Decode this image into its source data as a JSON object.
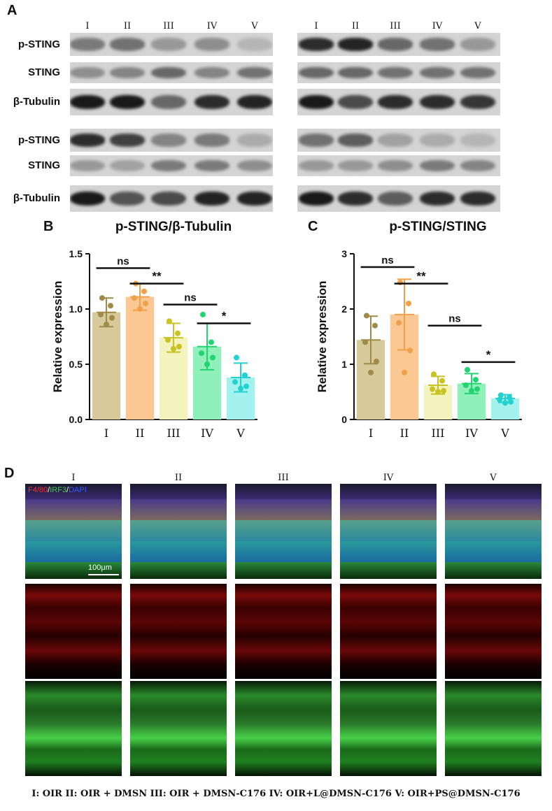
{
  "panels": {
    "a": "A",
    "b": "B",
    "c": "C",
    "d": "D"
  },
  "lanes": [
    "I",
    "II",
    "III",
    "IV",
    "V"
  ],
  "blot_rows": [
    "p-STING",
    "STING",
    "β-Tubulin",
    "p-STING",
    "STING",
    "β-Tubulin"
  ],
  "chart_data": [
    {
      "type": "bar",
      "title": "p-STING/β-Tubulin",
      "ylabel": "Relative expression",
      "xlabel": "",
      "categories": [
        "I",
        "II",
        "III",
        "IV",
        "V"
      ],
      "values": [
        0.97,
        1.11,
        0.74,
        0.66,
        0.38
      ],
      "errors": [
        0.13,
        0.12,
        0.13,
        0.21,
        0.13
      ],
      "points": [
        [
          1.1,
          1.03,
          0.95,
          0.92,
          0.86
        ],
        [
          1.23,
          1.16,
          1.1,
          1.05,
          1.0
        ],
        [
          0.89,
          0.78,
          0.72,
          0.66,
          0.64
        ],
        [
          0.95,
          0.7,
          0.6,
          0.56,
          0.5
        ],
        [
          0.56,
          0.4,
          0.34,
          0.3,
          0.28
        ]
      ],
      "ylim": [
        0,
        1.5
      ],
      "yticks": [
        "0.0",
        "0.5",
        "1.0",
        "1.5"
      ],
      "colors": [
        "#d6c99a",
        "#fbc893",
        "#f2f3bd",
        "#8ff0ba",
        "#a3f2ee"
      ],
      "point_colors": [
        "#a08a4a",
        "#f0a048",
        "#c8c222",
        "#22d372",
        "#22d1d0"
      ],
      "significance": [
        {
          "from": 0,
          "to": 1,
          "label": "ns",
          "y": 1.37
        },
        {
          "from": 1,
          "to": 2,
          "label": "**",
          "y": 1.23
        },
        {
          "from": 2,
          "to": 3,
          "label": "ns",
          "y": 1.04
        },
        {
          "from": 3,
          "to": 4,
          "label": "*",
          "y": 0.87
        }
      ]
    },
    {
      "type": "bar",
      "title": "p-STING/STING",
      "ylabel": "Relative expression",
      "xlabel": "",
      "categories": [
        "I",
        "II",
        "III",
        "IV",
        "V"
      ],
      "values": [
        1.44,
        1.9,
        0.62,
        0.65,
        0.38
      ],
      "errors": [
        0.43,
        0.64,
        0.16,
        0.18,
        0.07
      ],
      "points": [
        [
          1.88,
          1.7,
          1.4,
          1.05,
          0.85
        ],
        [
          2.48,
          2.1,
          1.75,
          1.25,
          0.85
        ],
        [
          0.82,
          0.7,
          0.55,
          0.52,
          0.5
        ],
        [
          0.9,
          0.72,
          0.62,
          0.55,
          0.52
        ],
        [
          0.44,
          0.4,
          0.36,
          0.32,
          0.3
        ]
      ],
      "ylim": [
        0,
        3
      ],
      "yticks": [
        "0",
        "1",
        "2",
        "3"
      ],
      "colors": [
        "#d6c99a",
        "#fbc893",
        "#f2f3bd",
        "#8ff0ba",
        "#a3f2ee"
      ],
      "point_colors": [
        "#a08a4a",
        "#f0a048",
        "#c8c222",
        "#22d372",
        "#22d1d0"
      ],
      "significance": [
        {
          "from": 0,
          "to": 1,
          "label": "ns",
          "y": 2.76
        },
        {
          "from": 1,
          "to": 2,
          "label": "**",
          "y": 2.46
        },
        {
          "from": 2,
          "to": 3,
          "label": "ns",
          "y": 1.7
        },
        {
          "from": 3,
          "to": 4,
          "label": "*",
          "y": 1.04
        }
      ]
    }
  ],
  "micrograph": {
    "columns": [
      "I",
      "II",
      "III",
      "IV",
      "V"
    ],
    "stain": {
      "f480": "F4/80",
      "irf3": "IRF3",
      "dapi": "DAPI",
      "sep": "/"
    },
    "scale_bar": "100μm",
    "colors": {
      "red": "#ff2a2a",
      "green": "#3ad43a",
      "blue": "#3a5aff"
    }
  },
  "legend": "I: OIR   II: OIR + DMSN   III: OIR + DMSN-C176   IV: OIR+L@DMSN-C176   V: OIR+PS@DMSN-C176"
}
